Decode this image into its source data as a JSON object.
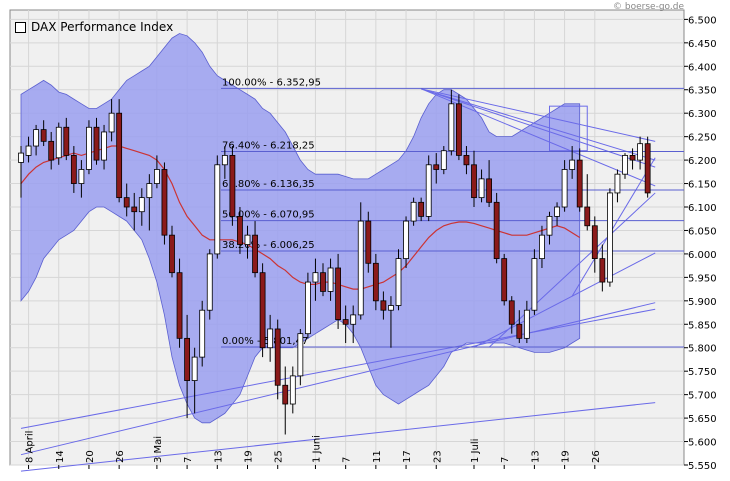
{
  "legend": {
    "label": "DAX Performance Index"
  },
  "watermark": "© boerse-go.de",
  "chart_data": {
    "type": "candlestick",
    "title": "DAX Performance Index",
    "ylim": [
      5550,
      6520
    ],
    "y_ticks": [
      5550,
      5600,
      5650,
      5700,
      5750,
      5800,
      5850,
      5900,
      5950,
      6000,
      6050,
      6100,
      6150,
      6200,
      6250,
      6300,
      6350,
      6400,
      6450,
      6500
    ],
    "y_tick_labels": [
      "5.550",
      "5.600",
      "5.650",
      "5.700",
      "5.750",
      "5.800",
      "5.850",
      "5.900",
      "5.950",
      "6.000",
      "6.050",
      "6.100",
      "6.150",
      "6.200",
      "6.250",
      "6.300",
      "6.350",
      "6.400",
      "6.450",
      "6.500"
    ],
    "x_tick_labels": [
      {
        "i": 1,
        "label": "8 April"
      },
      {
        "i": 5,
        "label": "14"
      },
      {
        "i": 9,
        "label": "20"
      },
      {
        "i": 13,
        "label": "26"
      },
      {
        "i": 18,
        "label": "3 Mai"
      },
      {
        "i": 22,
        "label": "7"
      },
      {
        "i": 26,
        "label": "13"
      },
      {
        "i": 30,
        "label": "19"
      },
      {
        "i": 34,
        "label": "25"
      },
      {
        "i": 39,
        "label": "1 Juni"
      },
      {
        "i": 43,
        "label": "7"
      },
      {
        "i": 47,
        "label": "11"
      },
      {
        "i": 51,
        "label": "17"
      },
      {
        "i": 55,
        "label": "23"
      },
      {
        "i": 60,
        "label": "1 Juli"
      },
      {
        "i": 64,
        "label": "7"
      },
      {
        "i": 68,
        "label": "13"
      },
      {
        "i": 72,
        "label": "19"
      },
      {
        "i": 76,
        "label": "26"
      }
    ],
    "candles": [
      {
        "o": 6195,
        "h": 6230,
        "l": 6120,
        "c": 6215
      },
      {
        "o": 6210,
        "h": 6250,
        "l": 6195,
        "c": 6230
      },
      {
        "o": 6230,
        "h": 6275,
        "l": 6210,
        "c": 6265
      },
      {
        "o": 6265,
        "h": 6285,
        "l": 6230,
        "c": 6240
      },
      {
        "o": 6240,
        "h": 6260,
        "l": 6180,
        "c": 6200
      },
      {
        "o": 6205,
        "h": 6280,
        "l": 6190,
        "c": 6270
      },
      {
        "o": 6270,
        "h": 6290,
        "l": 6200,
        "c": 6210
      },
      {
        "o": 6210,
        "h": 6230,
        "l": 6130,
        "c": 6150
      },
      {
        "o": 6150,
        "h": 6200,
        "l": 6120,
        "c": 6180
      },
      {
        "o": 6180,
        "h": 6285,
        "l": 6170,
        "c": 6270
      },
      {
        "o": 6270,
        "h": 6290,
        "l": 6190,
        "c": 6200
      },
      {
        "o": 6200,
        "h": 6275,
        "l": 6180,
        "c": 6260
      },
      {
        "o": 6260,
        "h": 6330,
        "l": 6240,
        "c": 6300
      },
      {
        "o": 6300,
        "h": 6330,
        "l": 6110,
        "c": 6120
      },
      {
        "o": 6120,
        "h": 6150,
        "l": 6080,
        "c": 6100
      },
      {
        "o": 6100,
        "h": 6130,
        "l": 6050,
        "c": 6090
      },
      {
        "o": 6090,
        "h": 6140,
        "l": 6060,
        "c": 6120
      },
      {
        "o": 6120,
        "h": 6170,
        "l": 6050,
        "c": 6150
      },
      {
        "o": 6150,
        "h": 6210,
        "l": 6140,
        "c": 6180
      },
      {
        "o": 6180,
        "h": 6195,
        "l": 6020,
        "c": 6040
      },
      {
        "o": 6040,
        "h": 6060,
        "l": 5950,
        "c": 5960
      },
      {
        "o": 5960,
        "h": 5990,
        "l": 5800,
        "c": 5820
      },
      {
        "o": 5820,
        "h": 5870,
        "l": 5650,
        "c": 5730
      },
      {
        "o": 5730,
        "h": 5800,
        "l": 5660,
        "c": 5780
      },
      {
        "o": 5780,
        "h": 5900,
        "l": 5760,
        "c": 5880
      },
      {
        "o": 5880,
        "h": 6010,
        "l": 5860,
        "c": 6000
      },
      {
        "o": 6000,
        "h": 6210,
        "l": 5990,
        "c": 6190
      },
      {
        "o": 6190,
        "h": 6230,
        "l": 6160,
        "c": 6210
      },
      {
        "o": 6210,
        "h": 6230,
        "l": 6060,
        "c": 6080
      },
      {
        "o": 6080,
        "h": 6100,
        "l": 6000,
        "c": 6020
      },
      {
        "o": 6020,
        "h": 6060,
        "l": 5990,
        "c": 6040
      },
      {
        "o": 6040,
        "h": 6070,
        "l": 5950,
        "c": 5960
      },
      {
        "o": 5960,
        "h": 5980,
        "l": 5780,
        "c": 5800
      },
      {
        "o": 5800,
        "h": 5870,
        "l": 5770,
        "c": 5840
      },
      {
        "o": 5840,
        "h": 5860,
        "l": 5690,
        "c": 5720
      },
      {
        "o": 5720,
        "h": 5760,
        "l": 5615,
        "c": 5680
      },
      {
        "o": 5680,
        "h": 5760,
        "l": 5660,
        "c": 5740
      },
      {
        "o": 5740,
        "h": 5840,
        "l": 5720,
        "c": 5830
      },
      {
        "o": 5830,
        "h": 5960,
        "l": 5820,
        "c": 5940
      },
      {
        "o": 5940,
        "h": 5990,
        "l": 5900,
        "c": 5960
      },
      {
        "o": 5960,
        "h": 5980,
        "l": 5910,
        "c": 5920
      },
      {
        "o": 5920,
        "h": 5990,
        "l": 5900,
        "c": 5970
      },
      {
        "o": 5970,
        "h": 6000,
        "l": 5840,
        "c": 5860
      },
      {
        "o": 5860,
        "h": 5890,
        "l": 5810,
        "c": 5850
      },
      {
        "o": 5850,
        "h": 5890,
        "l": 5810,
        "c": 5870
      },
      {
        "o": 5870,
        "h": 6110,
        "l": 5860,
        "c": 6070
      },
      {
        "o": 6070,
        "h": 6090,
        "l": 5960,
        "c": 5980
      },
      {
        "o": 5980,
        "h": 6000,
        "l": 5880,
        "c": 5900
      },
      {
        "o": 5900,
        "h": 5920,
        "l": 5860,
        "c": 5880
      },
      {
        "o": 5880,
        "h": 5910,
        "l": 5800,
        "c": 5890
      },
      {
        "o": 5890,
        "h": 6010,
        "l": 5880,
        "c": 5990
      },
      {
        "o": 5990,
        "h": 6080,
        "l": 5970,
        "c": 6070
      },
      {
        "o": 6070,
        "h": 6120,
        "l": 6060,
        "c": 6110
      },
      {
        "o": 6110,
        "h": 6120,
        "l": 6070,
        "c": 6080
      },
      {
        "o": 6080,
        "h": 6210,
        "l": 6070,
        "c": 6190
      },
      {
        "o": 6190,
        "h": 6215,
        "l": 6150,
        "c": 6180
      },
      {
        "o": 6180,
        "h": 6230,
        "l": 6170,
        "c": 6220
      },
      {
        "o": 6220,
        "h": 6350,
        "l": 6210,
        "c": 6320
      },
      {
        "o": 6320,
        "h": 6340,
        "l": 6200,
        "c": 6210
      },
      {
        "o": 6210,
        "h": 6230,
        "l": 6170,
        "c": 6190
      },
      {
        "o": 6190,
        "h": 6220,
        "l": 6100,
        "c": 6120
      },
      {
        "o": 6120,
        "h": 6180,
        "l": 6110,
        "c": 6160
      },
      {
        "o": 6160,
        "h": 6200,
        "l": 6100,
        "c": 6110
      },
      {
        "o": 6110,
        "h": 6130,
        "l": 5980,
        "c": 5990
      },
      {
        "o": 5990,
        "h": 6000,
        "l": 5890,
        "c": 5900
      },
      {
        "o": 5900,
        "h": 5910,
        "l": 5830,
        "c": 5850
      },
      {
        "o": 5850,
        "h": 5880,
        "l": 5810,
        "c": 5820
      },
      {
        "o": 5820,
        "h": 5900,
        "l": 5810,
        "c": 5880
      },
      {
        "o": 5880,
        "h": 6010,
        "l": 5870,
        "c": 5990
      },
      {
        "o": 5990,
        "h": 6060,
        "l": 5970,
        "c": 6040
      },
      {
        "o": 6040,
        "h": 6090,
        "l": 6020,
        "c": 6080
      },
      {
        "o": 6080,
        "h": 6110,
        "l": 6060,
        "c": 6100
      },
      {
        "o": 6100,
        "h": 6200,
        "l": 6090,
        "c": 6180
      },
      {
        "o": 6180,
        "h": 6230,
        "l": 6160,
        "c": 6200
      },
      {
        "o": 6200,
        "h": 6225,
        "l": 6090,
        "c": 6100
      },
      {
        "o": 6100,
        "h": 6170,
        "l": 6050,
        "c": 6060
      },
      {
        "o": 6060,
        "h": 6080,
        "l": 5960,
        "c": 5990
      },
      {
        "o": 5990,
        "h": 6020,
        "l": 5920,
        "c": 5940
      },
      {
        "o": 5940,
        "h": 6140,
        "l": 5930,
        "c": 6130
      },
      {
        "o": 6130,
        "h": 6180,
        "l": 6110,
        "c": 6170
      },
      {
        "o": 6170,
        "h": 6215,
        "l": 6160,
        "c": 6210
      },
      {
        "o": 6210,
        "h": 6225,
        "l": 6180,
        "c": 6200
      },
      {
        "o": 6200,
        "h": 6250,
        "l": 6180,
        "c": 6235
      },
      {
        "o": 6235,
        "h": 6250,
        "l": 6120,
        "c": 6130
      }
    ],
    "bollinger_upper": [
      6340,
      6350,
      6360,
      6370,
      6360,
      6345,
      6340,
      6330,
      6320,
      6310,
      6310,
      6320,
      6330,
      6350,
      6370,
      6380,
      6390,
      6400,
      6420,
      6440,
      6460,
      6470,
      6465,
      6450,
      6430,
      6400,
      6380,
      6370,
      6360,
      6350,
      6340,
      6330,
      6310,
      6300,
      6280,
      6260,
      6230,
      6200,
      6180,
      6170,
      6170,
      6170,
      6170,
      6165,
      6160,
      6160,
      6160,
      6170,
      6180,
      6190,
      6200,
      6220,
      6250,
      6290,
      6320,
      6340,
      6350,
      6350,
      6340,
      6330,
      6310,
      6290,
      6260,
      6250,
      6250,
      6250,
      6260,
      6270,
      6280,
      6290,
      6300,
      6310,
      6320,
      6320,
      6320
    ],
    "bollinger_lower": [
      5900,
      5920,
      5950,
      5990,
      6010,
      6030,
      6040,
      6050,
      6070,
      6090,
      6100,
      6100,
      6090,
      6080,
      6070,
      6050,
      6030,
      5990,
      5940,
      5870,
      5780,
      5720,
      5680,
      5650,
      5640,
      5640,
      5650,
      5660,
      5680,
      5700,
      5740,
      5780,
      5800,
      5800,
      5800,
      5800,
      5800,
      5810,
      5820,
      5830,
      5840,
      5850,
      5860,
      5850,
      5830,
      5800,
      5760,
      5720,
      5700,
      5690,
      5680,
      5690,
      5700,
      5710,
      5720,
      5740,
      5760,
      5790,
      5800,
      5810,
      5810,
      5810,
      5810,
      5810,
      5810,
      5805,
      5800,
      5795,
      5790,
      5790,
      5790,
      5795,
      5800,
      5810,
      5820
    ],
    "moving_average": [
      6150,
      6170,
      6185,
      6195,
      6200,
      6205,
      6210,
      6215,
      6210,
      6215,
      6220,
      6225,
      6230,
      6230,
      6225,
      6220,
      6215,
      6210,
      6200,
      6180,
      6150,
      6110,
      6080,
      6060,
      6040,
      6030,
      6030,
      6030,
      6030,
      6025,
      6020,
      6010,
      6000,
      5990,
      5975,
      5965,
      5950,
      5940,
      5935,
      5935,
      5940,
      5940,
      5935,
      5930,
      5925,
      5925,
      5930,
      5935,
      5940,
      5950,
      5960,
      5975,
      5995,
      6015,
      6035,
      6050,
      6060,
      6065,
      6068,
      6068,
      6065,
      6060,
      6055,
      6050,
      6045,
      6040,
      6040,
      6040,
      6045,
      6050,
      6055,
      6060,
      6055,
      6045,
      6035
    ],
    "fibonacci_levels": [
      {
        "label": "100.00% - 6.352,95",
        "value": 6352.95
      },
      {
        "label": "76.40% - 6.218,25",
        "value": 6218.25
      },
      {
        "label": "61.80% - 6.136,35",
        "value": 6136.35
      },
      {
        "label": "50.00% - 6.070,95",
        "value": 6070.95
      },
      {
        "label": "38.20% - 6.006,25",
        "value": 6006.25
      },
      {
        "label": "0.00% - 5.801,47",
        "value": 5801.47
      }
    ],
    "trendlines": [
      {
        "x1": 0,
        "y1": 5628,
        "x2": 84,
        "y2": 5882
      },
      {
        "x1": 0,
        "y1": 5572,
        "x2": 84,
        "y2": 5896
      },
      {
        "x1": 0,
        "y1": 5537,
        "x2": 84,
        "y2": 5683
      },
      {
        "x1": 60,
        "y1": 5801,
        "x2": 84,
        "y2": 6002
      },
      {
        "x1": 62,
        "y1": 5801,
        "x2": 84,
        "y2": 6130
      },
      {
        "x1": 73,
        "y1": 5910,
        "x2": 84,
        "y2": 6205
      },
      {
        "x1": 53,
        "y1": 6352,
        "x2": 84,
        "y2": 6240
      },
      {
        "x1": 53,
        "y1": 6352,
        "x2": 84,
        "y2": 6185
      },
      {
        "x1": 53,
        "y1": 6352,
        "x2": 84,
        "y2": 6145
      },
      {
        "x1": 53,
        "y1": 6352,
        "x2": 84,
        "y2": 6200
      }
    ],
    "highlight_box": {
      "x1": 70,
      "x2": 75,
      "y1": 6220,
      "y2": 6315
    },
    "colors": {
      "band_fill": "#9a9ff0",
      "band_stroke": "#5a5fd0",
      "moving_average": "#cc3333",
      "candle_up": "#ffffff",
      "candle_down": "#8b1a1a",
      "fib_line": "#5a5fd0",
      "trend_line": "#6a6ae8",
      "grid": "#d6d6d6",
      "plot_bg": "#f0f0f0"
    }
  }
}
